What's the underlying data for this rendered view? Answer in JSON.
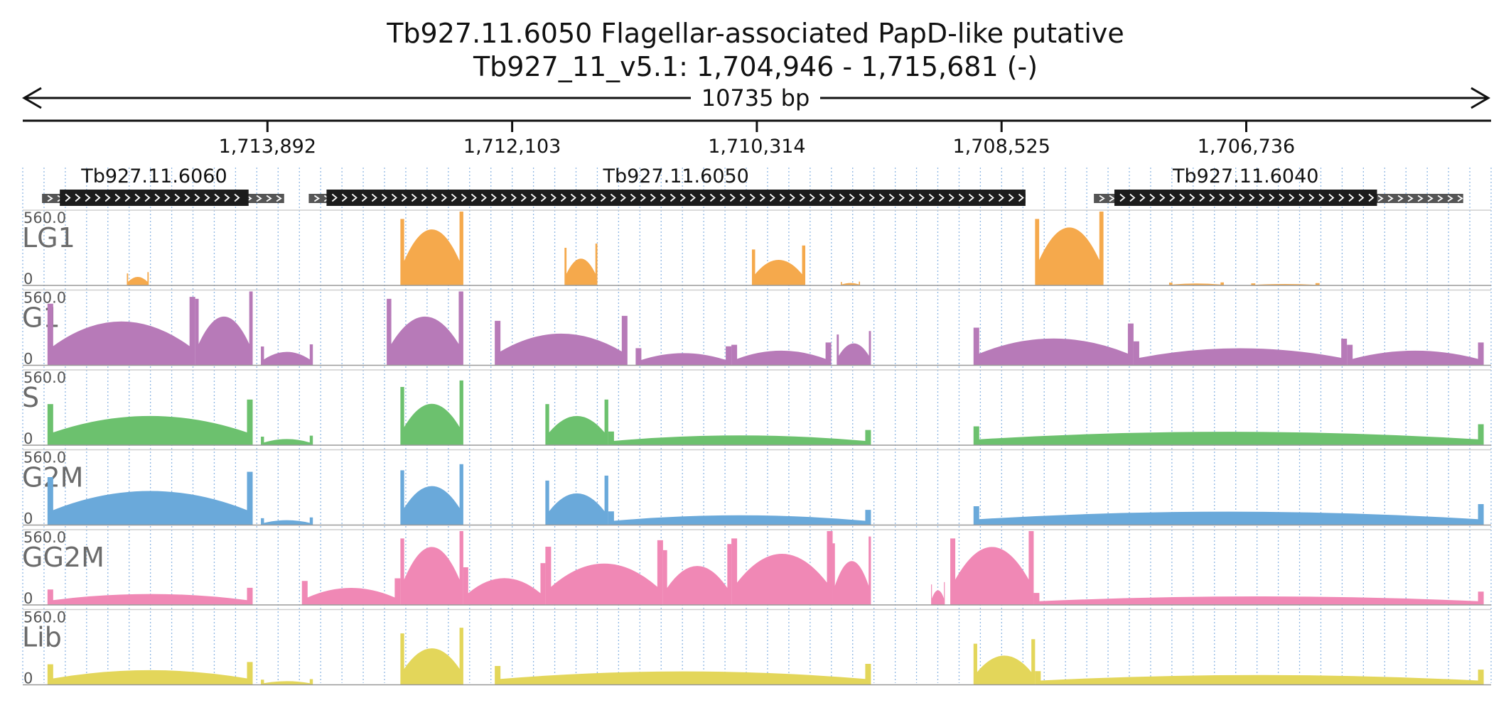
{
  "header": {
    "title": "Tb927.11.6050  Flagellar-associated PapD-like  putative",
    "subtitle": "Tb927_11_v5.1: 1,704,946 - 1,715,681 (-)",
    "span_label": "10735 bp"
  },
  "chart_data": {
    "type": "area",
    "region": {
      "chrom": "Tb927_11_v5.1",
      "start": 1704946,
      "end": 1715681,
      "strand": "-",
      "reversed": true
    },
    "ticks": [
      {
        "pos": 1713892,
        "label": "1,713,892"
      },
      {
        "pos": 1712103,
        "label": "1,712,103"
      },
      {
        "pos": 1710314,
        "label": "1,710,314"
      },
      {
        "pos": 1708525,
        "label": "1,708,525"
      },
      {
        "pos": 1706736,
        "label": "1,706,736"
      }
    ],
    "genes": [
      {
        "name": "Tb927.11.6060",
        "utr_from": 1715540,
        "cds_from": 1715410,
        "cds_to": 1714030,
        "utr_to": 1713770
      },
      {
        "name": "Tb927.11.6050",
        "utr_from": 1713590,
        "cds_from": 1713460,
        "cds_to": 1708350,
        "utr_to": 1708350
      },
      {
        "name": "Tb927.11.6040",
        "utr_from": 1707850,
        "cds_from": 1707700,
        "cds_to": 1705780,
        "utr_to": 1705150
      }
    ],
    "grid": true,
    "tracks": [
      {
        "name": "LG1",
        "ymin_label": "0",
        "ymax_label": "560.0",
        "ylim": [
          0,
          560
        ],
        "color": "#f5a94c",
        "profile": [
          {
            "s": 1714920,
            "e": 1714760,
            "v": 35
          },
          {
            "s": 1712920,
            "e": 1712460,
            "v": 230
          },
          {
            "s": 1711720,
            "e": 1711480,
            "v": 110
          },
          {
            "s": 1710350,
            "e": 1709960,
            "v": 105
          },
          {
            "s": 1709700,
            "e": 1709560,
            "v": 10
          },
          {
            "s": 1708280,
            "e": 1707780,
            "v": 260
          },
          {
            "s": 1707300,
            "e": 1706900,
            "v": 8
          },
          {
            "s": 1706700,
            "e": 1706200,
            "v": 6
          }
        ]
      },
      {
        "name": "G1",
        "ymin_label": "0",
        "ymax_label": "560.0",
        "ylim": [
          0,
          560
        ],
        "color": "#b77ab8",
        "profile": [
          {
            "s": 1715500,
            "e": 1714420,
            "v": 180
          },
          {
            "s": 1714420,
            "e": 1714000,
            "v": 200
          },
          {
            "s": 1713940,
            "e": 1713560,
            "v": 55
          },
          {
            "s": 1713020,
            "e": 1712460,
            "v": 200
          },
          {
            "s": 1712230,
            "e": 1711260,
            "v": 130
          },
          {
            "s": 1711200,
            "e": 1710500,
            "v": 50
          },
          {
            "s": 1710500,
            "e": 1709770,
            "v": 60
          },
          {
            "s": 1709730,
            "e": 1709480,
            "v": 90
          },
          {
            "s": 1708730,
            "e": 1707560,
            "v": 110
          },
          {
            "s": 1707560,
            "e": 1706000,
            "v": 70
          },
          {
            "s": 1706000,
            "e": 1705000,
            "v": 60
          }
        ]
      },
      {
        "name": "S",
        "ymin_label": "0",
        "ymax_label": "560.0",
        "ylim": [
          0,
          560
        ],
        "color": "#6cc16e",
        "profile": [
          {
            "s": 1715500,
            "e": 1714000,
            "v": 120
          },
          {
            "s": 1713940,
            "e": 1713560,
            "v": 25
          },
          {
            "s": 1712920,
            "e": 1712460,
            "v": 170
          },
          {
            "s": 1711860,
            "e": 1711400,
            "v": 120
          },
          {
            "s": 1711400,
            "e": 1709480,
            "v": 40
          },
          {
            "s": 1708730,
            "e": 1705000,
            "v": 55
          }
        ]
      },
      {
        "name": "G2M",
        "ymin_label": "0",
        "ymax_label": "560.0",
        "ylim": [
          0,
          560
        ],
        "color": "#6aa9da",
        "profile": [
          {
            "s": 1715500,
            "e": 1714000,
            "v": 140
          },
          {
            "s": 1713940,
            "e": 1713560,
            "v": 20
          },
          {
            "s": 1712920,
            "e": 1712460,
            "v": 160
          },
          {
            "s": 1711860,
            "e": 1711400,
            "v": 130
          },
          {
            "s": 1711400,
            "e": 1709480,
            "v": 40
          },
          {
            "s": 1708730,
            "e": 1705000,
            "v": 55
          }
        ]
      },
      {
        "name": "GG2M",
        "ymin_label": "0",
        "ymax_label": "560.0",
        "ylim": [
          0,
          560
        ],
        "color": "#f088b5",
        "profile": [
          {
            "s": 1715500,
            "e": 1714000,
            "v": 45
          },
          {
            "s": 1713640,
            "e": 1712920,
            "v": 70
          },
          {
            "s": 1712920,
            "e": 1712460,
            "v": 240
          },
          {
            "s": 1712460,
            "e": 1711860,
            "v": 110
          },
          {
            "s": 1711860,
            "e": 1711000,
            "v": 170
          },
          {
            "s": 1711000,
            "e": 1710500,
            "v": 160
          },
          {
            "s": 1710500,
            "e": 1709760,
            "v": 210
          },
          {
            "s": 1709760,
            "e": 1709480,
            "v": 180
          },
          {
            "s": 1709040,
            "e": 1708940,
            "v": 60
          },
          {
            "s": 1708900,
            "e": 1708290,
            "v": 380
          },
          {
            "s": 1708290,
            "e": 1705000,
            "v": 35
          }
        ]
      },
      {
        "name": "Lib",
        "ymin_label": "0",
        "ymax_label": "560.0",
        "ylim": [
          0,
          560
        ],
        "color": "#e3d65a",
        "profile": [
          {
            "s": 1715500,
            "e": 1714000,
            "v": 60
          },
          {
            "s": 1713940,
            "e": 1713560,
            "v": 15
          },
          {
            "s": 1712920,
            "e": 1712460,
            "v": 150
          },
          {
            "s": 1712230,
            "e": 1709480,
            "v": 55
          },
          {
            "s": 1708730,
            "e": 1708280,
            "v": 120
          },
          {
            "s": 1708280,
            "e": 1705000,
            "v": 40
          }
        ]
      }
    ]
  }
}
